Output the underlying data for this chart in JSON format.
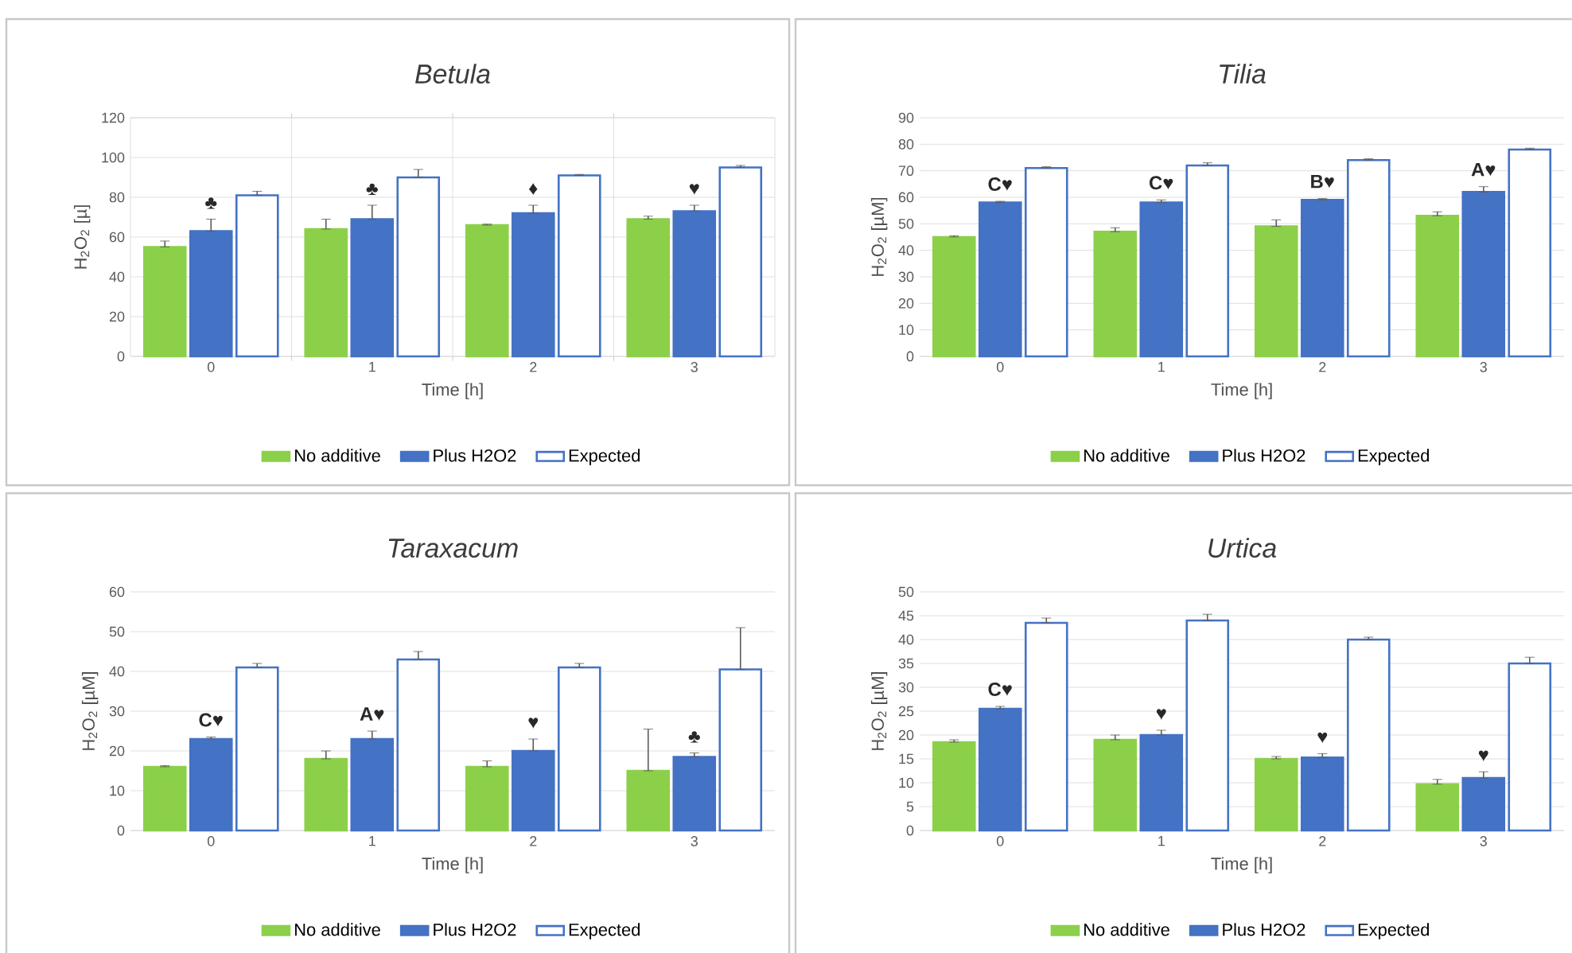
{
  "chart_data": [
    {
      "type": "bar",
      "title": "*Betula*",
      "xlabel": "Time [h]",
      "ylabel": "H$_{2}$O$_{2}$ [µ]",
      "categories": [
        "0",
        "1",
        "2",
        "3"
      ],
      "ylim": [
        0,
        120
      ],
      "yticks": [
        0,
        20,
        40,
        60,
        80,
        100,
        120
      ],
      "grid": true,
      "legend": "bottom",
      "series": [
        {
          "name": "No additive",
          "color": "#8cd04a",
          "values": [
            55,
            64,
            66,
            69
          ],
          "errors": [
            [
              55,
              58
            ],
            [
              64,
              69
            ],
            [
              66,
              66.5
            ],
            [
              69,
              70.5
            ]
          ]
        },
        {
          "name": "Plus H2O2",
          "color": "#4472c4",
          "values": [
            63,
            69,
            72,
            73
          ],
          "errors": [
            [
              63,
              69
            ],
            [
              69,
              76
            ],
            [
              72,
              76
            ],
            [
              73,
              76
            ]
          ]
        },
        {
          "name": "Expected",
          "color": "#ffffff",
          "values": [
            81,
            90,
            91,
            95
          ],
          "errors": [
            [
              81,
              83
            ],
            [
              90,
              94
            ],
            [
              91,
              91.5
            ],
            [
              95,
              96
            ]
          ]
        }
      ],
      "annotations": [
        "♣",
        "♣",
        "♦",
        "♥"
      ]
    },
    {
      "type": "bar",
      "title": "*Tilia*",
      "xlabel": "Time [h]",
      "ylabel": "H$_{2}$O$_{2}$ [µM]",
      "categories": [
        "0",
        "1",
        "2",
        "3"
      ],
      "ylim": [
        0,
        90
      ],
      "yticks": [
        0,
        10,
        20,
        30,
        40,
        50,
        60,
        70,
        80,
        90
      ],
      "grid": "y",
      "legend": "bottom",
      "series": [
        {
          "name": "No additive",
          "color": "#8cd04a",
          "values": [
            45,
            47,
            49,
            53
          ],
          "errors": [
            [
              45,
              45.5
            ],
            [
              47,
              48.5
            ],
            [
              49,
              51.5
            ],
            [
              53,
              54.5
            ]
          ]
        },
        {
          "name": "Plus H2O2",
          "color": "#4472c4",
          "values": [
            58,
            58,
            59,
            62
          ],
          "errors": [
            [
              58,
              58.5
            ],
            [
              58,
              59
            ],
            [
              59,
              59.5
            ],
            [
              62,
              64
            ]
          ]
        },
        {
          "name": "Expected",
          "color": "#ffffff",
          "values": [
            71,
            72,
            74,
            78
          ],
          "errors": [
            [
              71,
              71.5
            ],
            [
              72,
              73
            ],
            [
              74,
              74.5
            ],
            [
              78,
              78.5
            ]
          ]
        }
      ],
      "annotations": [
        "C♥",
        "C♥",
        "B♥",
        "A♥"
      ]
    },
    {
      "type": "bar",
      "title": "*Taraxacum*",
      "xlabel": "Time [h]",
      "ylabel": "H$_{2}$O$_{2}$ [µM]",
      "categories": [
        "0",
        "1",
        "2",
        "3"
      ],
      "ylim": [
        0,
        60
      ],
      "yticks": [
        0,
        10,
        20,
        30,
        40,
        50,
        60
      ],
      "grid": "y",
      "legend": "bottom",
      "series": [
        {
          "name": "No additive",
          "color": "#8cd04a",
          "values": [
            16,
            18,
            16,
            15
          ],
          "errors": [
            [
              16,
              16.3
            ],
            [
              18,
              20
            ],
            [
              16,
              17.5
            ],
            [
              15,
              25.5
            ]
          ]
        },
        {
          "name": "Plus H2O2",
          "color": "#4472c4",
          "values": [
            23,
            23,
            20,
            18.5
          ],
          "errors": [
            [
              23,
              23.5
            ],
            [
              23,
              25
            ],
            [
              20,
              23
            ],
            [
              18.5,
              19.5
            ]
          ]
        },
        {
          "name": "Expected",
          "color": "#ffffff",
          "values": [
            41,
            43,
            41,
            40.5
          ],
          "errors": [
            [
              41,
              42
            ],
            [
              43,
              45
            ],
            [
              41,
              42
            ],
            [
              40.5,
              51
            ]
          ]
        }
      ],
      "annotations": [
        "C♥",
        "A♥",
        "♥",
        "♣"
      ]
    },
    {
      "type": "bar",
      "title": "*Urtica*",
      "xlabel": "Time [h]",
      "ylabel": "H$_{2}$O$_{2}$ [µM]",
      "categories": [
        "0",
        "1",
        "2",
        "3"
      ],
      "ylim": [
        0,
        50
      ],
      "yticks": [
        0,
        5,
        10,
        15,
        20,
        25,
        30,
        35,
        40,
        45,
        50
      ],
      "grid": "y",
      "legend": "bottom",
      "series": [
        {
          "name": "No additive",
          "color": "#8cd04a",
          "values": [
            18.5,
            19,
            15,
            9.7
          ],
          "errors": [
            [
              18.5,
              19
            ],
            [
              19,
              20
            ],
            [
              15,
              15.5
            ],
            [
              9.7,
              10.7
            ]
          ]
        },
        {
          "name": "Plus H2O2",
          "color": "#4472c4",
          "values": [
            25.5,
            20,
            15.3,
            11
          ],
          "errors": [
            [
              25.5,
              26
            ],
            [
              20,
              21
            ],
            [
              15.3,
              16.1
            ],
            [
              11,
              12.3
            ]
          ]
        },
        {
          "name": "Expected",
          "color": "#ffffff",
          "values": [
            43.5,
            44,
            40,
            35
          ],
          "errors": [
            [
              43.5,
              44.5
            ],
            [
              44,
              45.3
            ],
            [
              40,
              40.5
            ],
            [
              35,
              36.3
            ]
          ]
        }
      ],
      "annotations": [
        "C♥",
        "♥",
        "♥",
        "♥"
      ]
    }
  ]
}
